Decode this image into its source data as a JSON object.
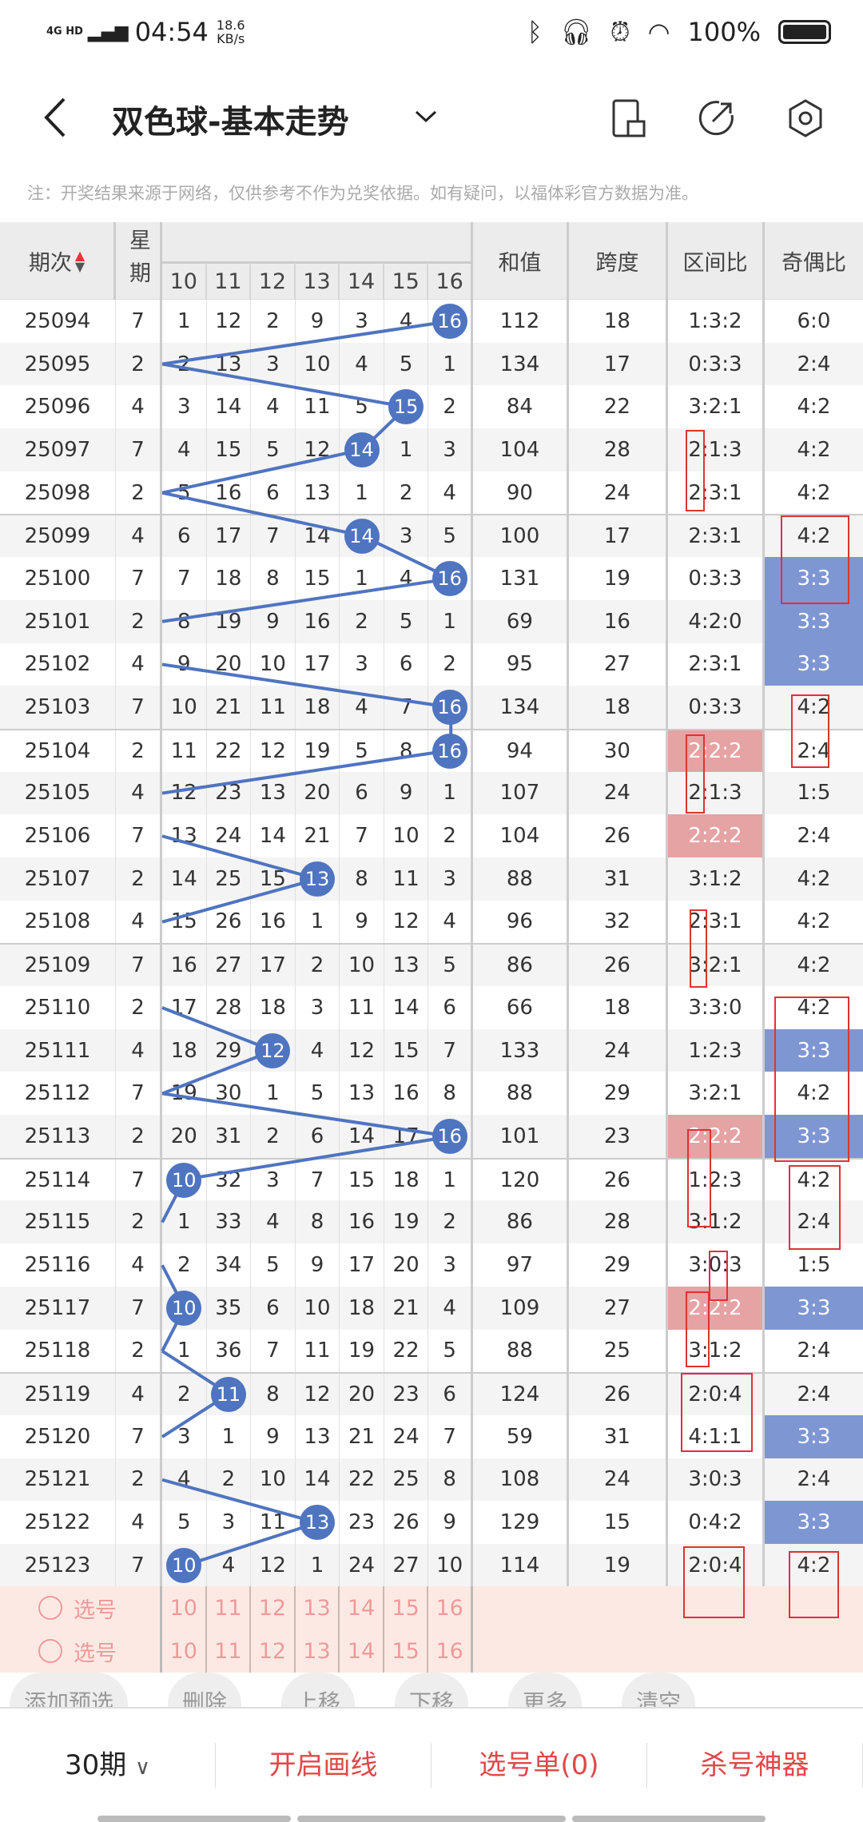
{
  "status_bar": {
    "network": "4G HD",
    "time": "04:54",
    "speed": "18.6",
    "speed_unit": "KB/s",
    "battery": "100%"
  },
  "header": {
    "title": "双色球-基本走势",
    "icons": [
      "back-arrow-icon",
      "chevron-down-icon",
      "device-icon",
      "share-icon",
      "settings-icon"
    ]
  },
  "notice": "注：开奖结果来源于网络，仅供参考不作为兑奖依据。如有疑问，以福体彩官方数据为准。",
  "table": {
    "headers": {
      "period": "期次",
      "weekday": "星期",
      "sum": "和值",
      "span": "跨度",
      "zone_ratio": "区间比",
      "odd_even": "奇偶比"
    },
    "number_columns": [
      "10",
      "11",
      "12",
      "13",
      "14",
      "15",
      "16"
    ],
    "colors": {
      "ball": "#4f74c0",
      "blue_cell": "#7e96d2",
      "pink_cell": "#e5a3a3",
      "line": "#4f74c0"
    },
    "rows": [
      {
        "period": "25094",
        "weekday": "7",
        "nums": [
          "1",
          "12",
          "2",
          "9",
          "3",
          "4",
          "16"
        ],
        "ball": 16,
        "sum": "112",
        "span": "18",
        "zone": "1:3:2",
        "oe": "6:0"
      },
      {
        "period": "25095",
        "weekday": "2",
        "nums": [
          "2",
          "13",
          "3",
          "10",
          "4",
          "5",
          "1"
        ],
        "ball": null,
        "sum": "134",
        "span": "17",
        "zone": "0:3:3",
        "oe": "2:4"
      },
      {
        "period": "25096",
        "weekday": "4",
        "nums": [
          "3",
          "14",
          "4",
          "11",
          "5",
          "15",
          "2"
        ],
        "ball": 15,
        "sum": "84",
        "span": "22",
        "zone": "3:2:1",
        "oe": "4:2"
      },
      {
        "period": "25097",
        "weekday": "7",
        "nums": [
          "4",
          "15",
          "5",
          "12",
          "14",
          "1",
          "3"
        ],
        "ball": 14,
        "sum": "104",
        "span": "28",
        "zone": "2:1:3",
        "oe": "4:2"
      },
      {
        "period": "25098",
        "weekday": "2",
        "nums": [
          "5",
          "16",
          "6",
          "13",
          "1",
          "2",
          "4"
        ],
        "ball": null,
        "sum": "90",
        "span": "24",
        "zone": "2:3:1",
        "oe": "4:2"
      },
      {
        "period": "25099",
        "weekday": "4",
        "nums": [
          "6",
          "17",
          "7",
          "14",
          "14",
          "3",
          "5"
        ],
        "ball": 14,
        "sum": "100",
        "span": "17",
        "zone": "2:3:1",
        "oe": "4:2"
      },
      {
        "period": "25100",
        "weekday": "7",
        "nums": [
          "7",
          "18",
          "8",
          "15",
          "1",
          "4",
          "16"
        ],
        "ball": 16,
        "sum": "131",
        "span": "19",
        "zone": "0:3:3",
        "oe": "3:3",
        "oe_hl": "blue"
      },
      {
        "period": "25101",
        "weekday": "2",
        "nums": [
          "8",
          "19",
          "9",
          "16",
          "2",
          "5",
          "1"
        ],
        "ball": null,
        "sum": "69",
        "span": "16",
        "zone": "4:2:0",
        "oe": "3:3",
        "oe_hl": "blue"
      },
      {
        "period": "25102",
        "weekday": "4",
        "nums": [
          "9",
          "20",
          "10",
          "17",
          "3",
          "6",
          "2"
        ],
        "ball": null,
        "sum": "95",
        "span": "27",
        "zone": "2:3:1",
        "oe": "3:3",
        "oe_hl": "blue"
      },
      {
        "period": "25103",
        "weekday": "7",
        "nums": [
          "10",
          "21",
          "11",
          "18",
          "4",
          "7",
          "16"
        ],
        "ball": 16,
        "sum": "134",
        "span": "18",
        "zone": "0:3:3",
        "oe": "4:2"
      },
      {
        "period": "25104",
        "weekday": "2",
        "nums": [
          "11",
          "22",
          "12",
          "19",
          "5",
          "8",
          "16"
        ],
        "ball": 16,
        "sum": "94",
        "span": "30",
        "zone": "2:2:2",
        "zone_hl": "pink",
        "oe": "2:4"
      },
      {
        "period": "25105",
        "weekday": "4",
        "nums": [
          "12",
          "23",
          "13",
          "20",
          "6",
          "9",
          "1"
        ],
        "ball": null,
        "sum": "107",
        "span": "24",
        "zone": "2:1:3",
        "oe": "1:5"
      },
      {
        "period": "25106",
        "weekday": "7",
        "nums": [
          "13",
          "24",
          "14",
          "21",
          "7",
          "10",
          "2"
        ],
        "ball": null,
        "sum": "104",
        "span": "26",
        "zone": "2:2:2",
        "zone_hl": "pink",
        "oe": "2:4"
      },
      {
        "period": "25107",
        "weekday": "2",
        "nums": [
          "14",
          "25",
          "15",
          "13",
          "8",
          "11",
          "3"
        ],
        "ball": 13,
        "sum": "88",
        "span": "31",
        "zone": "3:1:2",
        "oe": "4:2"
      },
      {
        "period": "25108",
        "weekday": "4",
        "nums": [
          "15",
          "26",
          "16",
          "1",
          "9",
          "12",
          "4"
        ],
        "ball": null,
        "sum": "96",
        "span": "32",
        "zone": "2:3:1",
        "oe": "4:2"
      },
      {
        "period": "25109",
        "weekday": "7",
        "nums": [
          "16",
          "27",
          "17",
          "2",
          "10",
          "13",
          "5"
        ],
        "ball": null,
        "sum": "86",
        "span": "26",
        "zone": "3:2:1",
        "oe": "4:2"
      },
      {
        "period": "25110",
        "weekday": "2",
        "nums": [
          "17",
          "28",
          "18",
          "3",
          "11",
          "14",
          "6"
        ],
        "ball": null,
        "sum": "66",
        "span": "18",
        "zone": "3:3:0",
        "oe": "4:2"
      },
      {
        "period": "25111",
        "weekday": "4",
        "nums": [
          "18",
          "29",
          "12",
          "4",
          "12",
          "15",
          "7"
        ],
        "ball": 12,
        "sum": "133",
        "span": "24",
        "zone": "1:2:3",
        "oe": "3:3",
        "oe_hl": "blue"
      },
      {
        "period": "25112",
        "weekday": "7",
        "nums": [
          "19",
          "30",
          "1",
          "5",
          "13",
          "16",
          "8"
        ],
        "ball": null,
        "sum": "88",
        "span": "29",
        "zone": "3:2:1",
        "oe": "4:2"
      },
      {
        "period": "25113",
        "weekday": "2",
        "nums": [
          "20",
          "31",
          "2",
          "6",
          "14",
          "17",
          "16"
        ],
        "ball": 16,
        "sum": "101",
        "span": "23",
        "zone": "2:2:2",
        "zone_hl": "pink",
        "oe": "3:3",
        "oe_hl": "blue"
      },
      {
        "period": "25114",
        "weekday": "7",
        "nums": [
          "10",
          "32",
          "3",
          "7",
          "15",
          "18",
          "1"
        ],
        "ball": 10,
        "sum": "120",
        "span": "26",
        "zone": "1:2:3",
        "oe": "4:2"
      },
      {
        "period": "25115",
        "weekday": "2",
        "nums": [
          "1",
          "33",
          "4",
          "8",
          "16",
          "19",
          "2"
        ],
        "ball": null,
        "sum": "86",
        "span": "28",
        "zone": "3:1:2",
        "oe": "2:4"
      },
      {
        "period": "25116",
        "weekday": "4",
        "nums": [
          "2",
          "34",
          "5",
          "9",
          "17",
          "20",
          "3"
        ],
        "ball": null,
        "sum": "97",
        "span": "29",
        "zone": "3:0:3",
        "oe": "1:5"
      },
      {
        "period": "25117",
        "weekday": "7",
        "nums": [
          "10",
          "35",
          "6",
          "10",
          "18",
          "21",
          "4"
        ],
        "ball": 10,
        "sum": "109",
        "span": "27",
        "zone": "2:2:2",
        "zone_hl": "pink",
        "oe": "3:3",
        "oe_hl": "blue"
      },
      {
        "period": "25118",
        "weekday": "2",
        "nums": [
          "1",
          "36",
          "7",
          "11",
          "19",
          "22",
          "5"
        ],
        "ball": null,
        "sum": "88",
        "span": "25",
        "zone": "3:1:2",
        "oe": "2:4"
      },
      {
        "period": "25119",
        "weekday": "4",
        "nums": [
          "2",
          "11",
          "8",
          "12",
          "20",
          "23",
          "6"
        ],
        "ball": 11,
        "sum": "124",
        "span": "26",
        "zone": "2:0:4",
        "oe": "2:4"
      },
      {
        "period": "25120",
        "weekday": "7",
        "nums": [
          "3",
          "1",
          "9",
          "13",
          "21",
          "24",
          "7"
        ],
        "ball": null,
        "sum": "59",
        "span": "31",
        "zone": "4:1:1",
        "oe": "3:3",
        "oe_hl": "blue"
      },
      {
        "period": "25121",
        "weekday": "2",
        "nums": [
          "4",
          "2",
          "10",
          "14",
          "22",
          "25",
          "8"
        ],
        "ball": null,
        "sum": "108",
        "span": "24",
        "zone": "3:0:3",
        "oe": "2:4"
      },
      {
        "period": "25122",
        "weekday": "4",
        "nums": [
          "5",
          "3",
          "11",
          "13",
          "23",
          "26",
          "9"
        ],
        "ball": 13,
        "sum": "129",
        "span": "15",
        "zone": "0:4:2",
        "oe": "3:3",
        "oe_hl": "blue"
      },
      {
        "period": "25123",
        "weekday": "7",
        "nums": [
          "10",
          "4",
          "12",
          "1",
          "24",
          "27",
          "10"
        ],
        "ball": 10,
        "sum": "114",
        "span": "19",
        "zone": "2:0:4",
        "oe": "4:2"
      }
    ]
  },
  "selection": {
    "label": "选号",
    "numbers": [
      "10",
      "11",
      "12",
      "13",
      "14",
      "15",
      "16"
    ],
    "rows": 2
  },
  "actions": [
    "添加预选",
    "删除",
    "上移",
    "下移",
    "更多",
    "清空"
  ],
  "bottom_bar": {
    "period": "30期",
    "draw_lines": "开启画线",
    "pick_list": "选号单(0)",
    "kill_tool": "杀号神器"
  }
}
